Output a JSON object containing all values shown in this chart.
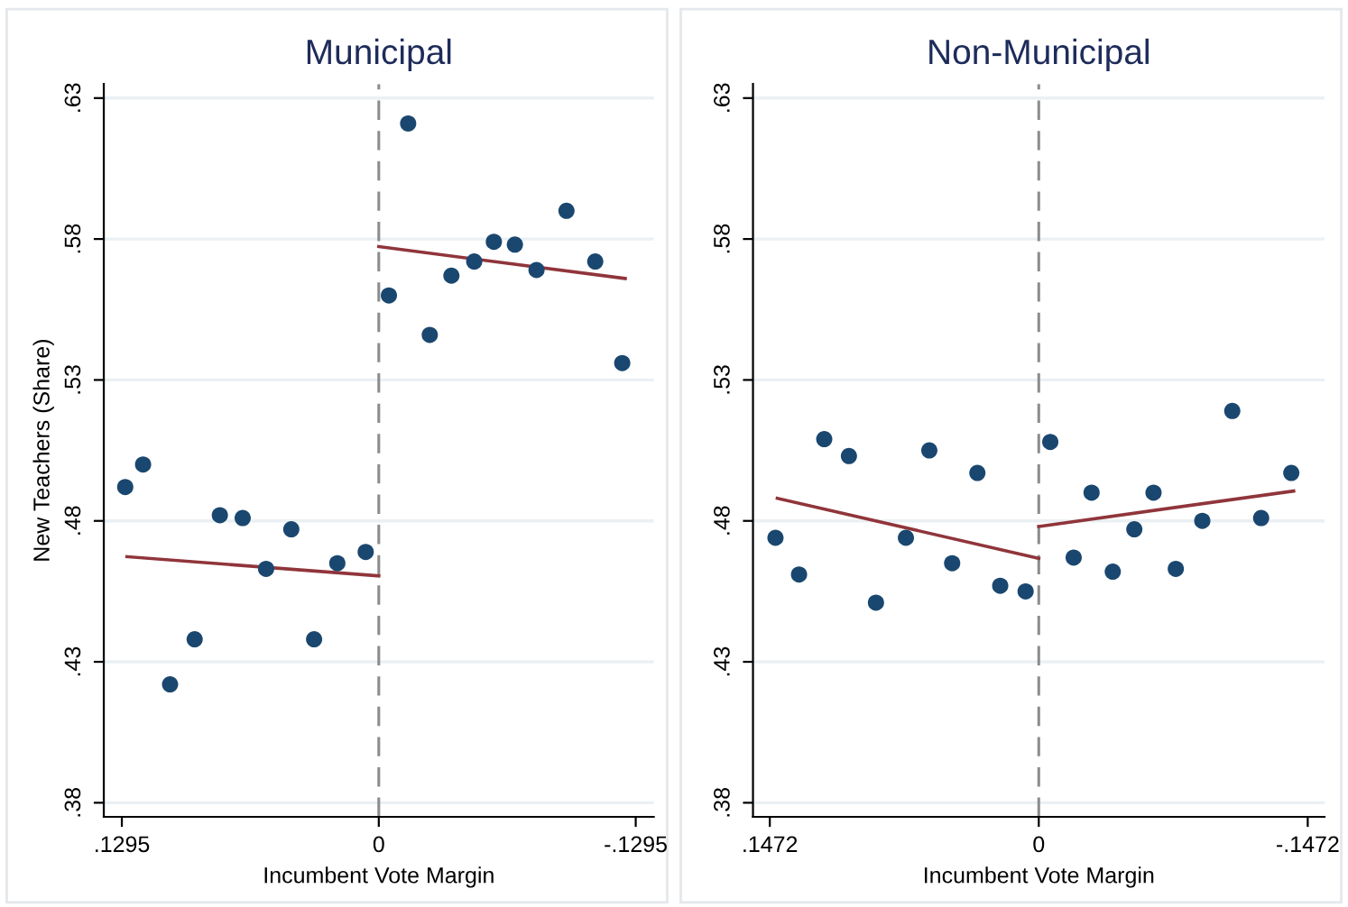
{
  "chart_data": [
    {
      "type": "scatter",
      "title": "Municipal",
      "xlabel": "Incumbent Vote Margin",
      "ylabel": "New Teachers (Share)",
      "xlim": [
        0.1386,
        -0.1386
      ],
      "xticks": [
        {
          "value": 0.1295,
          "label": ".1295"
        },
        0,
        {
          "value": -0.1295,
          "label": "-.1295"
        }
      ],
      "ylim": [
        0.375,
        0.635
      ],
      "yticks": [
        {
          "value": 0.38,
          "label": ".38"
        },
        {
          "value": 0.43,
          "label": ".43"
        },
        {
          "value": 0.48,
          "label": ".48"
        },
        {
          "value": 0.53,
          "label": ".53"
        },
        {
          "value": 0.58,
          "label": ".58"
        },
        {
          "value": 0.63,
          "label": ".63"
        }
      ],
      "grid": "y",
      "ref_lines": [
        {
          "axis": "x",
          "value": 0,
          "color": "#8c8c8c",
          "line_style": "dashed"
        }
      ],
      "series": [
        {
          "color": "#1a476f",
          "marker": "circle",
          "x": [
            0.1278,
            0.1188,
            0.1052,
            0.0928,
            0.0801,
            0.0686,
            0.0568,
            0.0441,
            0.0326,
            0.0209,
            0.0066
          ],
          "values": [
            0.492,
            0.5,
            0.422,
            0.438,
            0.482,
            0.481,
            0.463,
            0.477,
            0.438,
            0.465,
            0.469
          ]
        },
        {
          "color": "#1a476f",
          "marker": "circle",
          "x": [
            -0.0051,
            -0.0148,
            -0.0257,
            -0.0366,
            -0.0481,
            -0.058,
            -0.0686,
            -0.0795,
            -0.0946,
            -0.1091,
            -0.1227
          ],
          "values": [
            0.56,
            0.621,
            0.546,
            0.567,
            0.572,
            0.579,
            0.578,
            0.569,
            0.59,
            0.572,
            0.536
          ]
        },
        {
          "type": "line",
          "color": "#90353b",
          "x": [
            0.1269,
            0
          ],
          "values": [
            0.4673,
            0.4605
          ]
        },
        {
          "type": "line",
          "color": "#90353b",
          "x": [
            0,
            -0.1242
          ],
          "values": [
            0.5773,
            0.566
          ]
        }
      ]
    },
    {
      "type": "scatter",
      "title": "Non-Municipal",
      "xlabel": "Incumbent Vote Margin",
      "xlim": [
        0.1564,
        -0.1564
      ],
      "xticks": [
        {
          "value": 0.1472,
          "label": ".1472"
        },
        0,
        {
          "value": -0.1472,
          "label": "-.1472"
        }
      ],
      "ylim": [
        0.375,
        0.635
      ],
      "yticks": [
        {
          "value": 0.38,
          "label": ".38"
        },
        {
          "value": 0.43,
          "label": ".43"
        },
        {
          "value": 0.48,
          "label": ".48"
        },
        {
          "value": 0.53,
          "label": ".53"
        },
        {
          "value": 0.58,
          "label": ".58"
        },
        {
          "value": 0.63,
          "label": ".63"
        }
      ],
      "grid": "y",
      "ref_lines": [
        {
          "axis": "x",
          "value": 0,
          "color": "#8c8c8c",
          "line_style": "dashed"
        }
      ],
      "series": [
        {
          "color": "#1a476f",
          "marker": "circle",
          "x": [
            0.1441,
            0.1312,
            0.1174,
            0.1039,
            0.0891,
            0.0727,
            0.0599,
            0.0474,
            0.0336,
            0.0211,
            0.0072
          ],
          "values": [
            0.474,
            0.461,
            0.509,
            0.503,
            0.451,
            0.474,
            0.505,
            0.465,
            0.497,
            0.457,
            0.455
          ]
        },
        {
          "color": "#1a476f",
          "marker": "circle",
          "x": [
            -0.0063,
            -0.0191,
            -0.0289,
            -0.0405,
            -0.0523,
            -0.0628,
            -0.075,
            -0.0895,
            -0.1059,
            -0.1217,
            -0.1382
          ],
          "values": [
            0.508,
            0.467,
            0.49,
            0.462,
            0.477,
            0.49,
            0.463,
            0.48,
            0.519,
            0.481,
            0.497
          ]
        },
        {
          "type": "line",
          "color": "#90353b",
          "x": [
            0.1431,
            0
          ],
          "values": [
            0.488,
            0.4667
          ]
        },
        {
          "type": "line",
          "color": "#90353b",
          "x": [
            0,
            -0.1395
          ],
          "values": [
            0.478,
            0.4906
          ]
        }
      ]
    }
  ]
}
